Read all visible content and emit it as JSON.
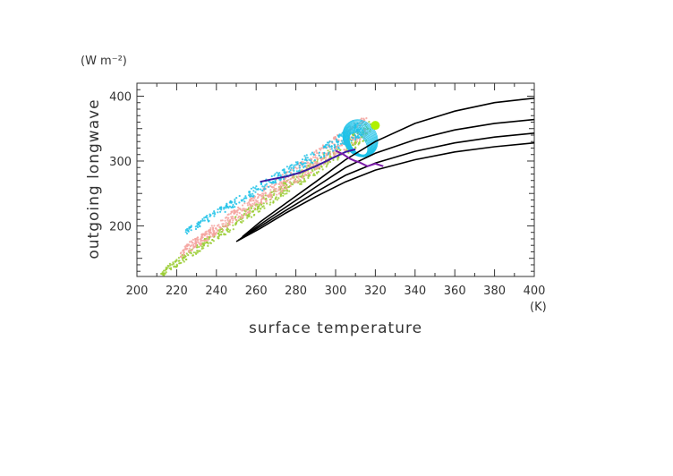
{
  "chart_data": {
    "type": "scatter",
    "xlabel": "surface temperature",
    "ylabel": "outgoing longwave",
    "xunit": "(K)",
    "yunit": "(W m⁻²)",
    "xlim": [
      200,
      400
    ],
    "ylim": [
      122,
      420
    ],
    "xticks": [
      200,
      220,
      240,
      260,
      280,
      300,
      320,
      340,
      360,
      380,
      400
    ],
    "yticks": [
      200,
      300,
      400
    ],
    "grid": false,
    "legend": "none",
    "series": [
      {
        "color": "#000000",
        "kind": "line",
        "x": [
          250,
          262,
          275,
          290,
          305,
          320,
          340,
          360,
          380,
          400
        ],
        "y": [
          176,
          196,
          220,
          245,
          268,
          286,
          302,
          314,
          322,
          328
        ]
      },
      {
        "color": "#000000",
        "kind": "line",
        "x": [
          251,
          262,
          275,
          290,
          305,
          320,
          340,
          360,
          380,
          400
        ],
        "y": [
          178,
          199,
          224,
          252,
          278,
          297,
          315,
          328,
          337,
          343
        ]
      },
      {
        "color": "#000000",
        "kind": "line",
        "x": [
          252,
          262,
          275,
          290,
          305,
          320,
          340,
          360,
          380,
          400
        ],
        "y": [
          180,
          202,
          229,
          260,
          290,
          312,
          333,
          348,
          358,
          364
        ]
      },
      {
        "color": "#000000",
        "kind": "line",
        "x": [
          253,
          262,
          275,
          290,
          305,
          320,
          340,
          360,
          380,
          400
        ],
        "y": [
          183,
          206,
          235,
          268,
          302,
          330,
          358,
          377,
          390,
          397
        ]
      },
      {
        "color": "#9acd32",
        "kind": "band",
        "x_range": [
          212,
          318
        ],
        "y_range": [
          126,
          350
        ],
        "spread": 14,
        "n": 500
      },
      {
        "color": "#f4a5a0",
        "kind": "band",
        "x_range": [
          222,
          316
        ],
        "y_range": [
          158,
          356
        ],
        "spread": 18,
        "n": 600
      },
      {
        "color": "#1ec2e8",
        "kind": "band",
        "x_range": [
          224,
          314
        ],
        "y_range": [
          190,
          352
        ],
        "spread": 12,
        "n": 320
      },
      {
        "color": "#1ec2e8",
        "kind": "loops",
        "x": [
          305,
          318
        ],
        "y": [
          308,
          345
        ]
      },
      {
        "color": "#3a1aa0",
        "kind": "line",
        "x": [
          262,
          268,
          275,
          282,
          290,
          298,
          305,
          310
        ],
        "y": [
          268,
          272,
          276,
          282,
          292,
          304,
          314,
          318
        ]
      },
      {
        "color": "#7a1aa8",
        "kind": "line",
        "x": [
          300,
          304,
          307,
          310,
          312,
          316,
          320,
          324
        ],
        "y": [
          316,
          310,
          304,
          300,
          298,
          292,
          296,
          292
        ]
      },
      {
        "color": "#b0f000",
        "kind": "marker",
        "x": [
          320
        ],
        "y": [
          355
        ]
      }
    ]
  }
}
